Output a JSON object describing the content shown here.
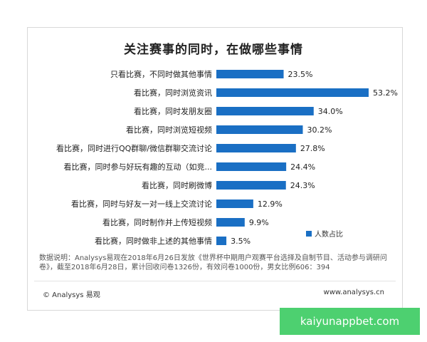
{
  "chart_data": {
    "type": "bar",
    "orientation": "horizontal",
    "title": "关注赛事的同时，在做哪些事情",
    "categories": [
      "只看比赛，不同时做其他事情",
      "看比赛，同时浏览资讯",
      "看比赛，同时发朋友圈",
      "看比赛，同时浏览短视频",
      "看比赛，同时进行QQ群聊/微信群聊交流讨论",
      "看比赛，同时参与好玩有趣的互动（如竞...",
      "看比赛，同时刷微博",
      "看比赛，同时与好友一对一线上交流讨论",
      "看比赛，同时制作并上传短视频",
      "看比赛，同时做非上述的其他事情"
    ],
    "series": [
      {
        "name": "人数占比",
        "values": [
          23.5,
          53.2,
          34.0,
          30.2,
          27.8,
          24.4,
          24.3,
          12.9,
          9.9,
          3.5
        ],
        "value_labels": [
          "23.5%",
          "53.2%",
          "34.0%",
          "30.2%",
          "27.8%",
          "24.4%",
          "24.3%",
          "12.9%",
          "9.9%",
          "3.5%"
        ],
        "color": "#1a6fc4"
      }
    ],
    "xlim": [
      0,
      53.2
    ],
    "grid": false,
    "legend": "bottom-right"
  },
  "note": {
    "line1": "数据说明：Analysys易观在2018年6月26日发放《世界杯中期用户观赛平台选择及自制节目、活动参与调研问",
    "line2": "卷》，截至2018年6月28日，累计回收问卷1326份，有效问卷1000份，男女比例606：394"
  },
  "footer": {
    "copyright": "© Analysys 易观",
    "website": "www.analysys.cn"
  },
  "promo": {
    "text": "kaiyunappbet.com",
    "color": "#4dd070"
  }
}
